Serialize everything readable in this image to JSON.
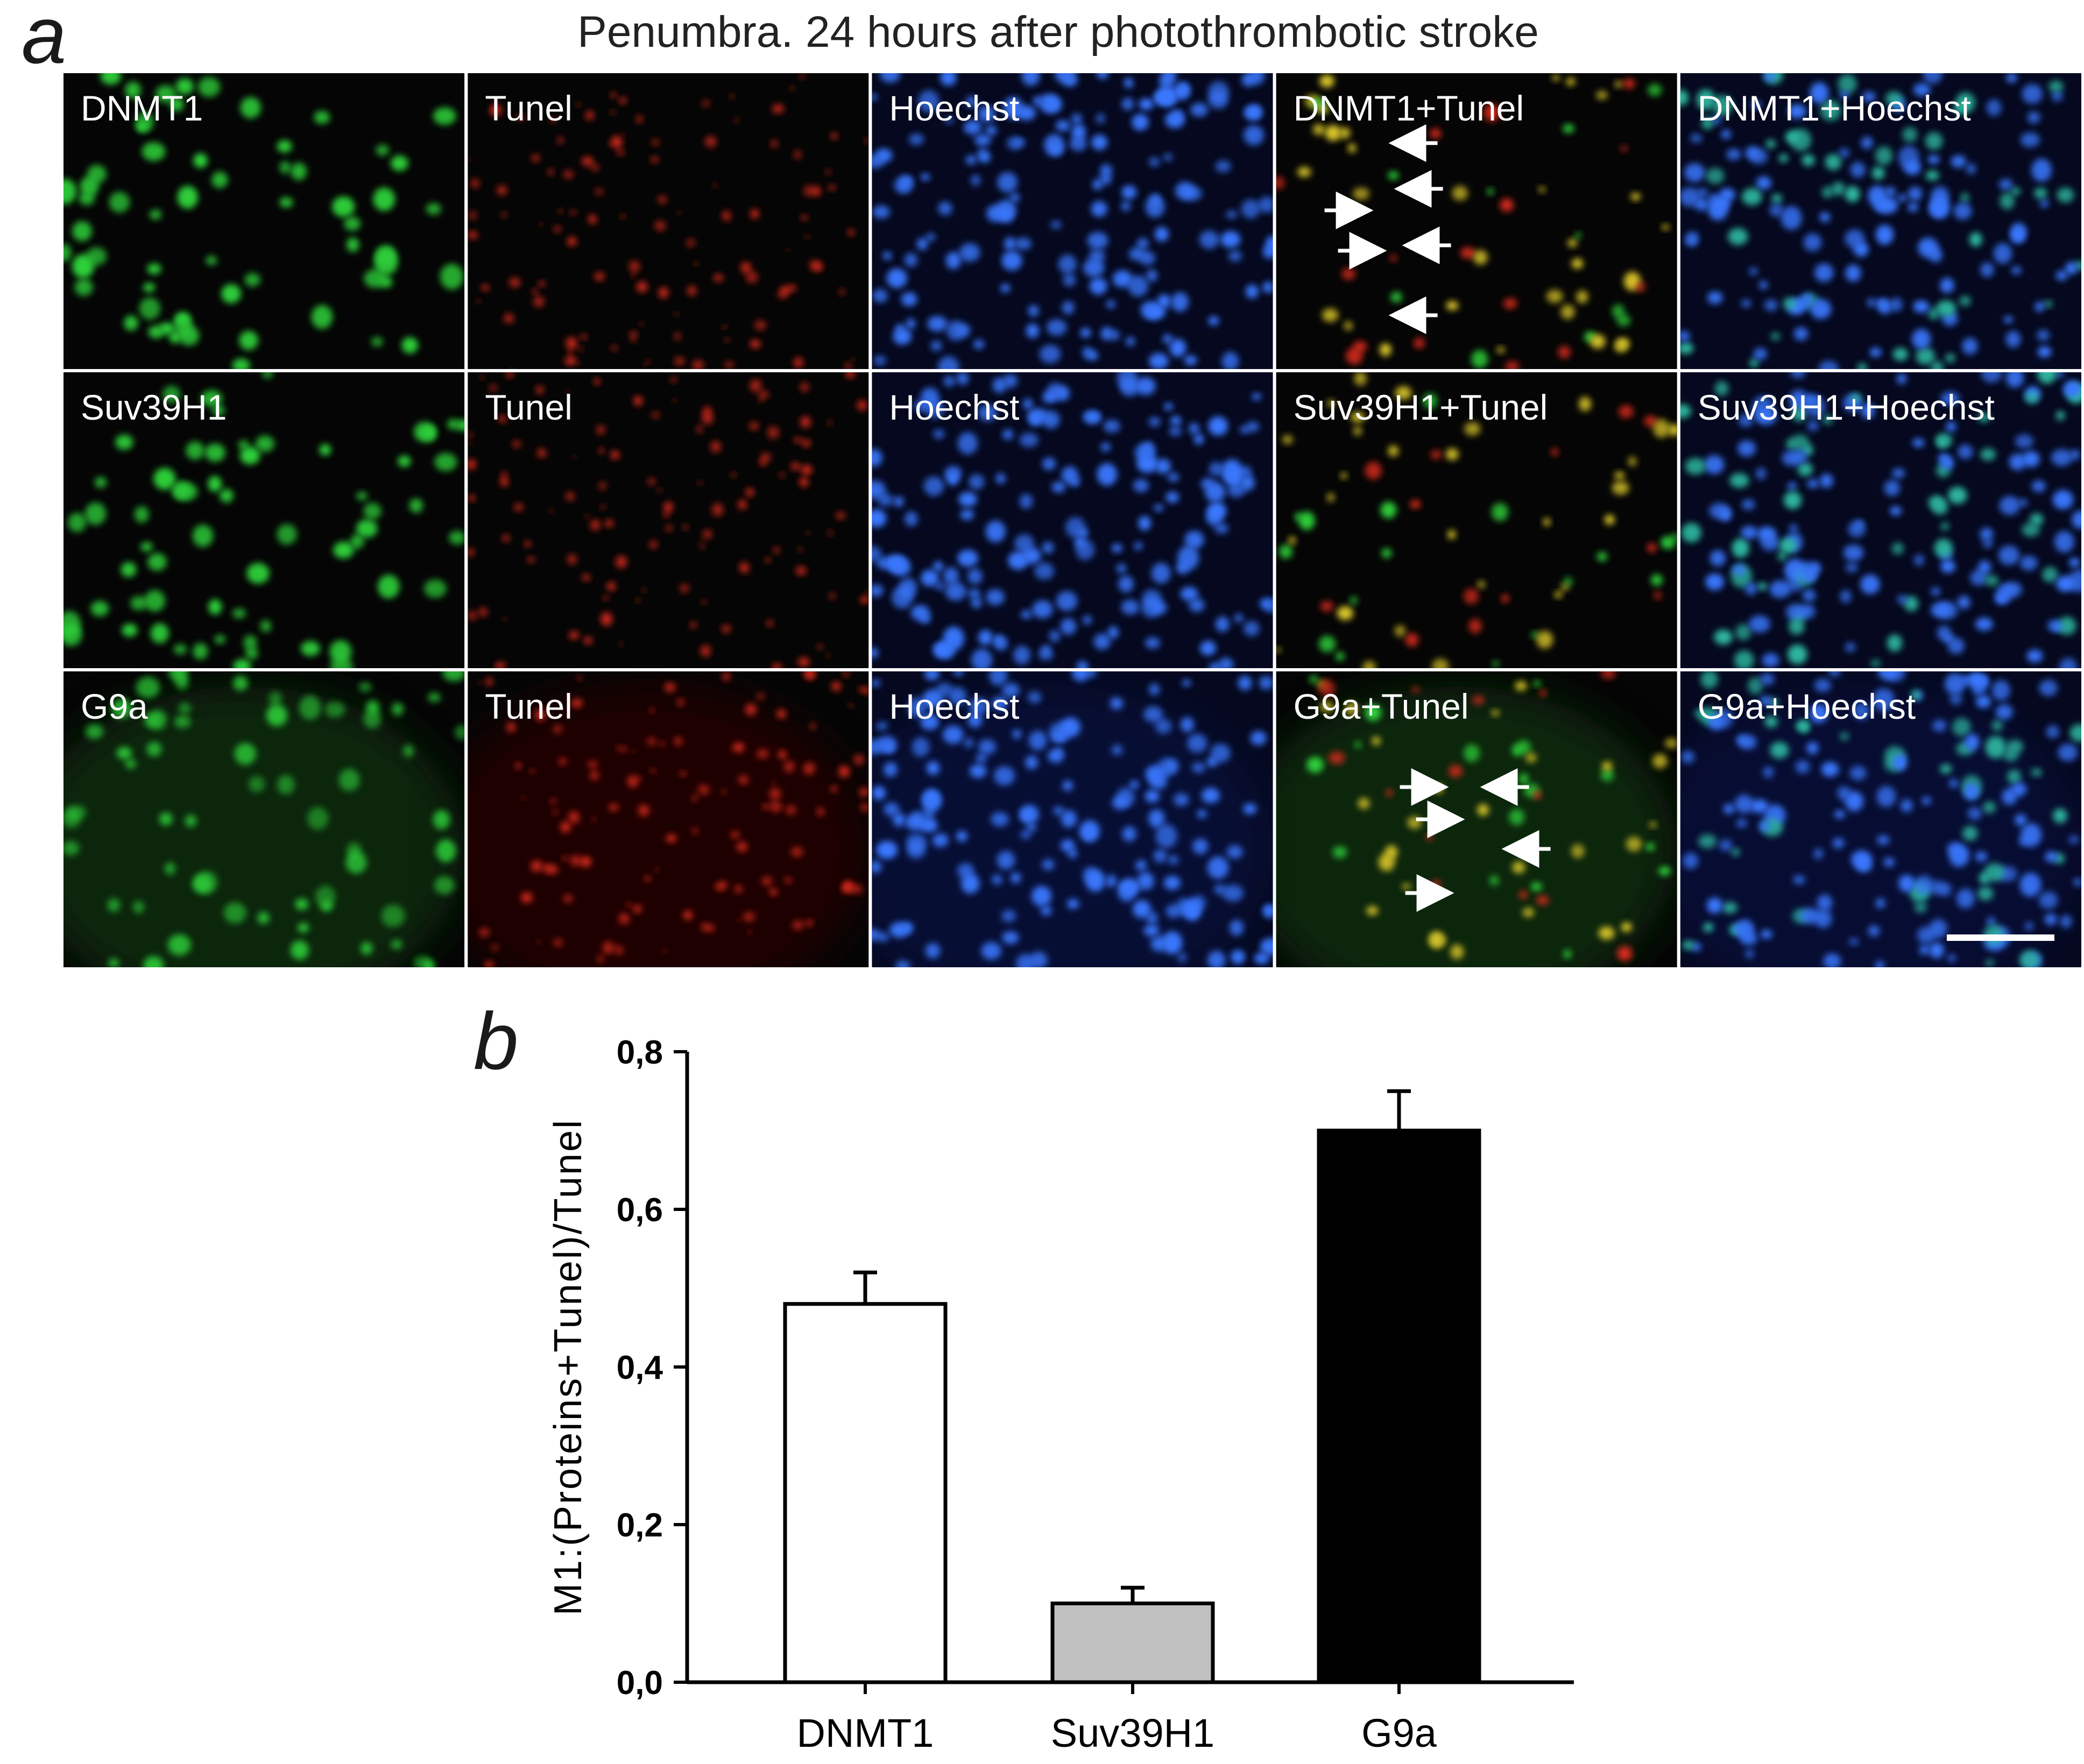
{
  "panel_a": {
    "letter": "a",
    "title": "Penumbra. 24 hours after photothrombotic stroke",
    "rows": [
      {
        "protein": "DNMT1",
        "cells": [
          {
            "label": "DNMT1",
            "channel": "green"
          },
          {
            "label": "Tunel",
            "channel": "red"
          },
          {
            "label": "Hoechst",
            "channel": "blue"
          },
          {
            "label": "DNMT1+Tunel",
            "channel": "merge-red-green"
          },
          {
            "label": "DNMT1+Hoechst",
            "channel": "merge-blue-green"
          }
        ]
      },
      {
        "protein": "Suv39H1",
        "cells": [
          {
            "label": "Suv39H1",
            "channel": "green"
          },
          {
            "label": "Tunel",
            "channel": "red"
          },
          {
            "label": "Hoechst",
            "channel": "blue"
          },
          {
            "label": "Suv39H1+Tunel",
            "channel": "merge-red-green"
          },
          {
            "label": "Suv39H1+Hoechst",
            "channel": "merge-blue-green"
          }
        ]
      },
      {
        "protein": "G9a",
        "cells": [
          {
            "label": "G9a",
            "channel": "green"
          },
          {
            "label": "Tunel",
            "channel": "red"
          },
          {
            "label": "Hoechst",
            "channel": "blue"
          },
          {
            "label": "G9a+Tunel",
            "channel": "merge-red-green"
          },
          {
            "label": "G9a+Hoechst",
            "channel": "merge-blue-green"
          }
        ]
      }
    ],
    "colors": {
      "green": "#2fd13a",
      "red": "#d42a1c",
      "blue": "#3a78ff",
      "merge_yellow": "#d9c62a",
      "cyan_merge": "#2fb8a0",
      "arrow": "#ffffff",
      "border": "#ffffff"
    }
  },
  "chart_data": {
    "type": "bar",
    "panel_letter": "b",
    "categories": [
      "DNMT1",
      "Suv39H1",
      "G9a"
    ],
    "values": [
      0.48,
      0.1,
      0.7
    ],
    "errors": [
      0.04,
      0.02,
      0.05
    ],
    "bar_colors": [
      "#ffffff",
      "#c0c0c0",
      "#000000"
    ],
    "ylabel": "M1:(Proteins+Tunel)/Tunel",
    "ylim": [
      0,
      0.8
    ],
    "yticks": [
      "0,0",
      "0,2",
      "0,4",
      "0,6",
      "0,8"
    ],
    "ytick_values": [
      0,
      0.2,
      0.4,
      0.6,
      0.8
    ],
    "grid": false
  }
}
